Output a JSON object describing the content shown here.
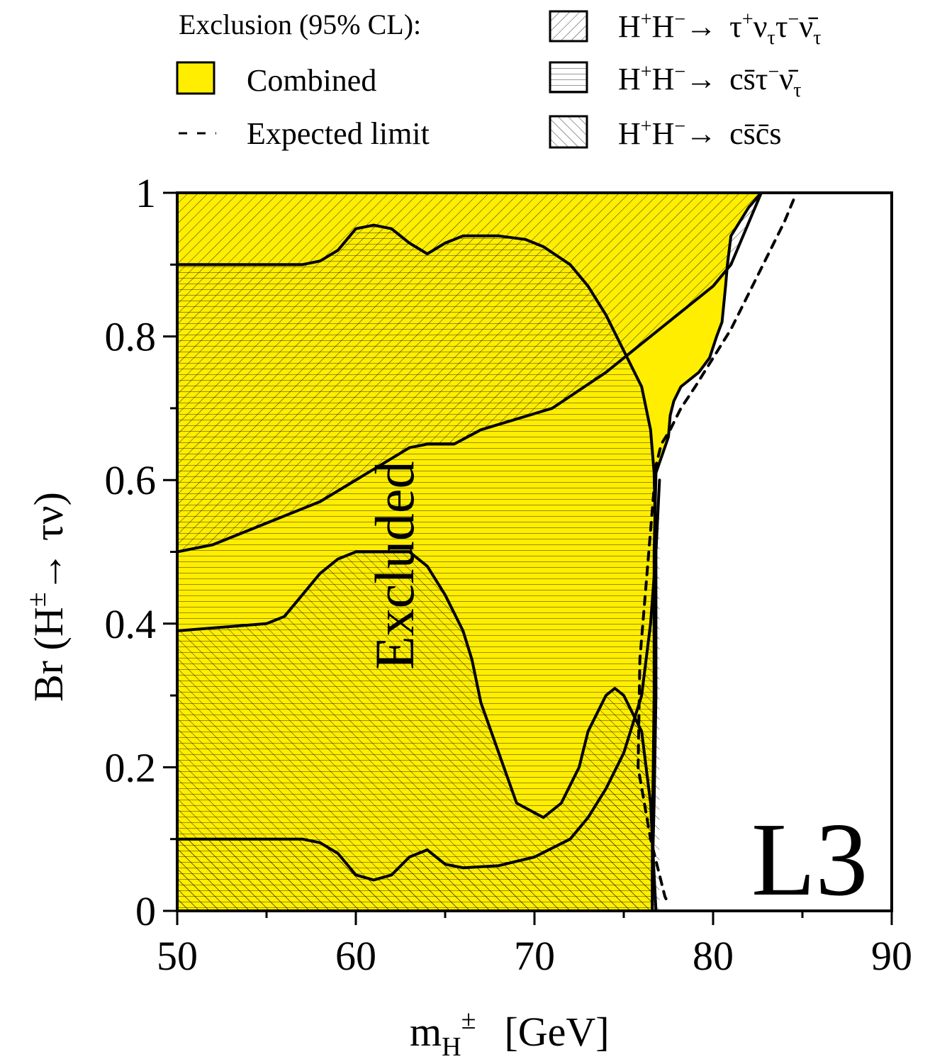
{
  "legend": {
    "heading": "Exclusion (95% CL):",
    "combined": "Combined",
    "expected": "Expected limit",
    "channel_prefix": "H",
    "channel_arrow": "→",
    "channel_tau": "τ⁺ν",
    "channel_tau_rest": "τ",
    "channel_cstau": "cs̄τ",
    "channel_cscs": "cs̄c̄s"
  },
  "plot": {
    "excluded_label": "Excluded",
    "experiment_label": "L3",
    "xaxis_main": "m",
    "xaxis_sub": "H",
    "xaxis_sup": "±",
    "xaxis_unit": "[GeV]",
    "yaxis_label": "Br (H",
    "yaxis_sup": "±",
    "yaxis_rest": "→ τν)"
  },
  "colors": {
    "combined_fill": "#ffee00",
    "line": "#000000"
  },
  "chart_data": {
    "type": "area",
    "xlabel": "m_H± [GeV]",
    "ylabel": "Br (H± → τν)",
    "xlim": [
      50,
      90
    ],
    "ylim": [
      0,
      1
    ],
    "xticks": [
      50,
      60,
      70,
      80,
      90
    ],
    "yticks": [
      0,
      0.2,
      0.4,
      0.6,
      0.8,
      1
    ],
    "x_tick_labels": [
      "50",
      "60",
      "70",
      "80",
      "90"
    ],
    "y_tick_labels": [
      "0",
      "0.2",
      "0.4",
      "0.6",
      "0.8",
      "1"
    ],
    "grid": false,
    "legend_position": "top",
    "series": [
      {
        "name": "Combined",
        "kind": "filled_region",
        "boundary": [
          [
            50,
            1
          ],
          [
            82.7,
            1
          ],
          [
            82,
            0.98
          ],
          [
            81.5,
            0.96
          ],
          [
            81,
            0.94
          ],
          [
            80.8,
            0.9
          ],
          [
            80.7,
            0.87
          ],
          [
            80.5,
            0.82
          ],
          [
            80.2,
            0.8
          ],
          [
            79.8,
            0.77
          ],
          [
            79.2,
            0.75
          ],
          [
            78.2,
            0.73
          ],
          [
            77.8,
            0.71
          ],
          [
            77.6,
            0.69
          ],
          [
            77.5,
            0.66
          ],
          [
            76.8,
            0.61
          ],
          [
            76.7,
            0.5
          ],
          [
            76.7,
            0.3
          ],
          [
            76.6,
            0.1
          ],
          [
            76.6,
            0
          ],
          [
            50,
            0
          ]
        ]
      },
      {
        "name": "τ⁺ντ⁻ν̄ region boundary",
        "kind": "boundary",
        "points": [
          [
            50,
            0.5
          ],
          [
            52,
            0.51
          ],
          [
            58,
            0.57
          ],
          [
            62,
            0.63
          ],
          [
            63,
            0.645
          ],
          [
            64,
            0.65
          ],
          [
            65.5,
            0.65
          ],
          [
            67,
            0.67
          ],
          [
            71,
            0.7
          ],
          [
            74,
            0.75
          ],
          [
            76,
            0.79
          ],
          [
            78,
            0.83
          ],
          [
            80,
            0.87
          ],
          [
            81,
            0.9
          ],
          [
            82.7,
            1
          ]
        ]
      },
      {
        "name": "cs̄τ⁻ν̄ region upper boundary",
        "kind": "boundary",
        "points": [
          [
            50,
            0.9
          ],
          [
            57,
            0.9
          ],
          [
            58,
            0.905
          ],
          [
            59,
            0.92
          ],
          [
            60,
            0.95
          ],
          [
            61,
            0.955
          ],
          [
            62,
            0.95
          ],
          [
            63,
            0.93
          ],
          [
            64,
            0.915
          ],
          [
            65,
            0.93
          ],
          [
            66,
            0.94
          ],
          [
            68,
            0.94
          ],
          [
            69.5,
            0.935
          ],
          [
            70.5,
            0.925
          ],
          [
            72,
            0.9
          ],
          [
            73,
            0.87
          ],
          [
            74,
            0.83
          ],
          [
            75,
            0.78
          ],
          [
            76,
            0.73
          ],
          [
            76.5,
            0.67
          ],
          [
            76.7,
            0.61
          ],
          [
            76.8,
            0.5
          ],
          [
            76.8,
            0.4
          ],
          [
            76.8,
            0.3
          ],
          [
            76.7,
            0.15
          ],
          [
            76.6,
            0.05
          ],
          [
            76.6,
            0
          ]
        ]
      },
      {
        "name": "cs̄c̄s region boundary",
        "kind": "boundary",
        "points": [
          [
            50,
            0.39
          ],
          [
            55,
            0.4
          ],
          [
            56,
            0.41
          ],
          [
            57,
            0.44
          ],
          [
            58,
            0.47
          ],
          [
            59,
            0.49
          ],
          [
            60,
            0.5
          ],
          [
            63,
            0.5
          ],
          [
            64,
            0.48
          ],
          [
            65,
            0.44
          ],
          [
            66,
            0.39
          ],
          [
            66.5,
            0.35
          ],
          [
            67,
            0.29
          ],
          [
            68,
            0.22
          ],
          [
            69,
            0.15
          ],
          [
            70.5,
            0.13
          ],
          [
            71.5,
            0.15
          ],
          [
            72.5,
            0.2
          ],
          [
            73,
            0.25
          ],
          [
            74,
            0.3
          ],
          [
            74.5,
            0.31
          ],
          [
            75,
            0.3
          ],
          [
            76,
            0.25
          ],
          [
            76.5,
            0.15
          ],
          [
            76.7,
            0.05
          ],
          [
            76.8,
            0
          ]
        ]
      },
      {
        "name": "cs̄c̄s region lower boundary",
        "kind": "boundary",
        "points": [
          [
            50,
            0.1
          ],
          [
            57,
            0.1
          ],
          [
            58,
            0.095
          ],
          [
            59,
            0.08
          ],
          [
            60,
            0.05
          ],
          [
            61,
            0.043
          ],
          [
            62,
            0.05
          ],
          [
            63,
            0.075
          ],
          [
            64,
            0.085
          ],
          [
            65,
            0.065
          ],
          [
            66,
            0.06
          ],
          [
            68,
            0.063
          ],
          [
            70,
            0.075
          ],
          [
            72,
            0.1
          ],
          [
            73,
            0.13
          ],
          [
            74,
            0.17
          ],
          [
            75,
            0.22
          ],
          [
            76,
            0.3
          ],
          [
            76.5,
            0.4
          ],
          [
            76.8,
            0.5
          ],
          [
            77,
            0.6
          ]
        ]
      },
      {
        "name": "Expected limit",
        "kind": "dashed",
        "points": [
          [
            84.5,
            0.99
          ],
          [
            84,
            0.96
          ],
          [
            83,
            0.91
          ],
          [
            82,
            0.86
          ],
          [
            81,
            0.81
          ],
          [
            80,
            0.77
          ],
          [
            79,
            0.73
          ],
          [
            78.2,
            0.7
          ],
          [
            77.6,
            0.67
          ],
          [
            77.1,
            0.65
          ],
          [
            76.8,
            0.62
          ],
          [
            76.4,
            0.5
          ],
          [
            75.9,
            0.35
          ],
          [
            75.8,
            0.2
          ],
          [
            76.5,
            0.1
          ],
          [
            77.3,
            0.02
          ],
          [
            77.5,
            0.01
          ]
        ]
      }
    ]
  }
}
